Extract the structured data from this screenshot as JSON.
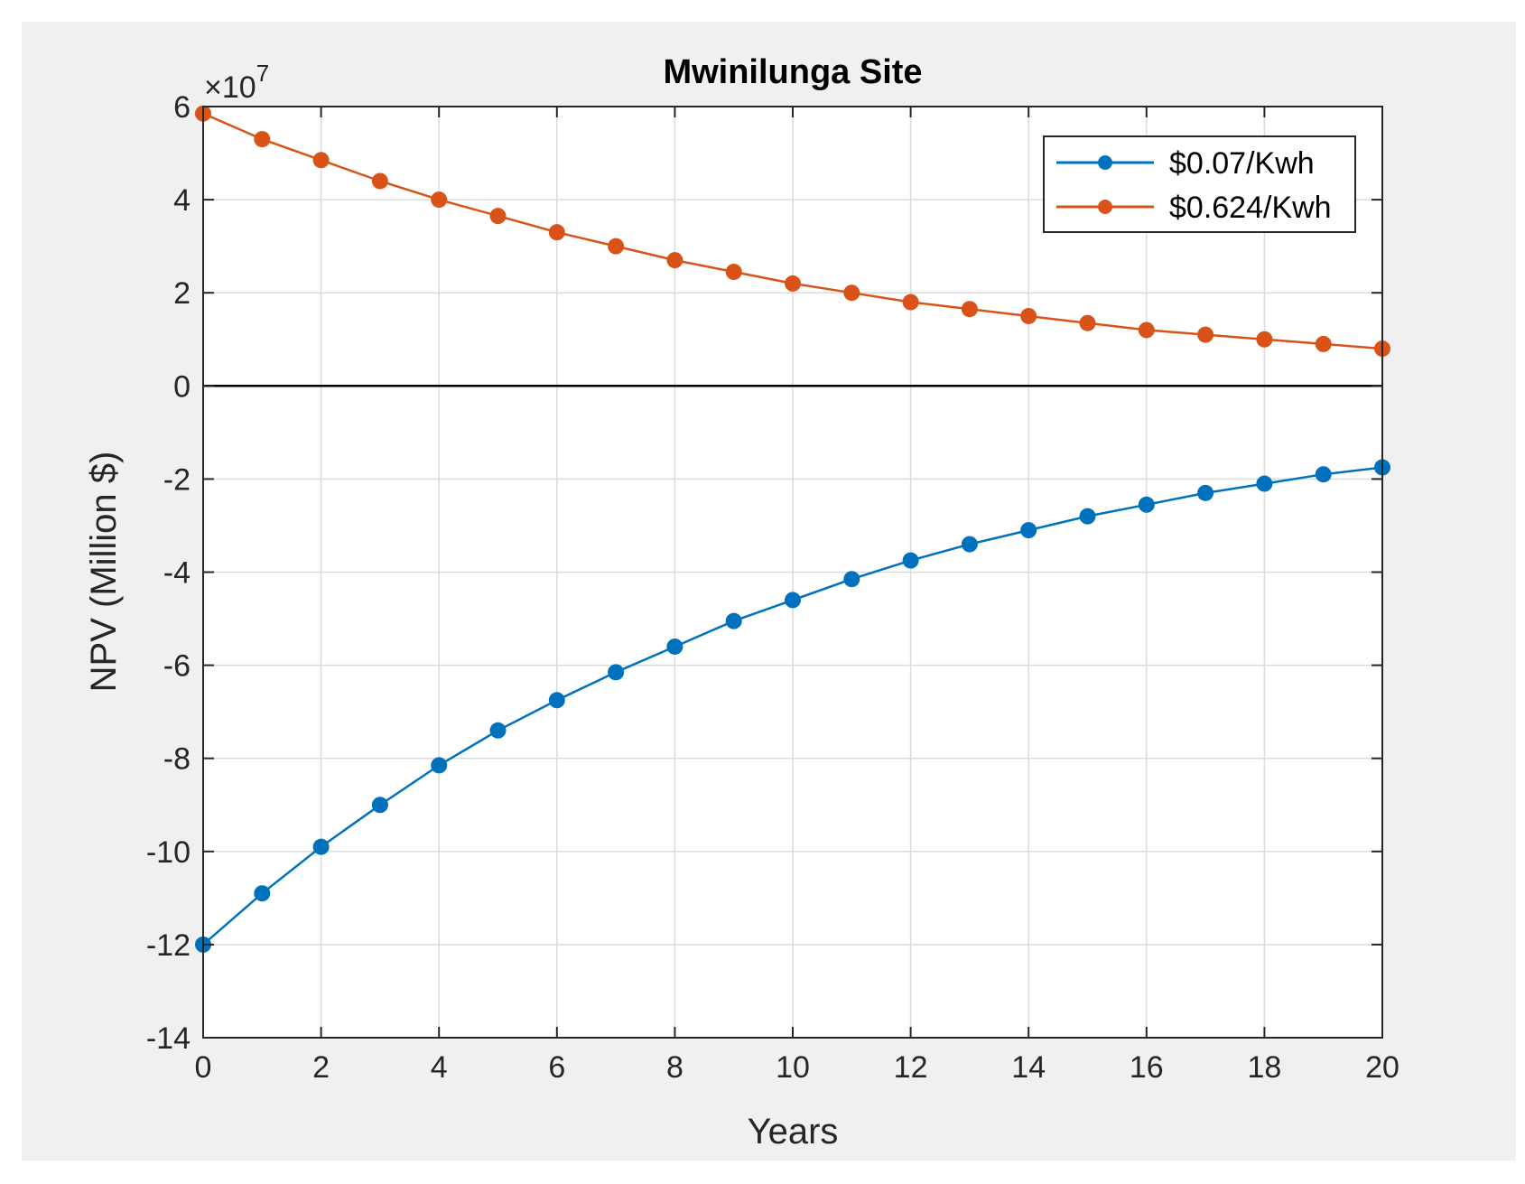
{
  "chart_data": {
    "type": "line",
    "title": "Mwinilunga Site",
    "xlabel": "Years",
    "ylabel": "NPV (Million $)",
    "exponent": {
      "base": "×10",
      "power": "7"
    },
    "xlim": [
      0,
      20
    ],
    "ylim": [
      -14,
      6
    ],
    "xticks": [
      0,
      2,
      4,
      6,
      8,
      10,
      12,
      14,
      16,
      18,
      20
    ],
    "yticks": [
      -14,
      -12,
      -10,
      -8,
      -6,
      -4,
      -2,
      0,
      2,
      4,
      6
    ],
    "grid": true,
    "legend_position": "top-right",
    "x": [
      0,
      1,
      2,
      3,
      4,
      5,
      6,
      7,
      8,
      9,
      10,
      11,
      12,
      13,
      14,
      15,
      16,
      17,
      18,
      19,
      20
    ],
    "series": [
      {
        "name": "$0.07/Kwh",
        "color": "#0072bd",
        "values": [
          -12.0,
          -10.9,
          -9.9,
          -9.0,
          -8.15,
          -7.4,
          -6.75,
          -6.15,
          -5.6,
          -5.05,
          -4.6,
          -4.15,
          -3.75,
          -3.4,
          -3.1,
          -2.8,
          -2.55,
          -2.3,
          -2.1,
          -1.9,
          -1.75
        ]
      },
      {
        "name": "$0.624/Kwh",
        "color": "#d95319",
        "values": [
          5.85,
          5.3,
          4.85,
          4.4,
          4.0,
          3.65,
          3.3,
          3.0,
          2.7,
          2.45,
          2.2,
          2.0,
          1.8,
          1.65,
          1.5,
          1.35,
          1.2,
          1.1,
          1.0,
          0.9,
          0.8
        ]
      }
    ],
    "reference_line": {
      "y": 0,
      "color": "#000000"
    }
  }
}
